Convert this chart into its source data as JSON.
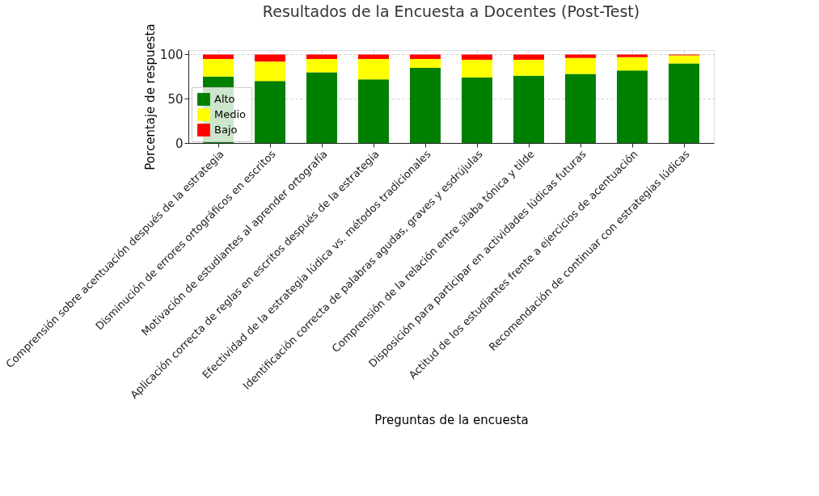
{
  "chart_data": {
    "type": "bar",
    "stacked": true,
    "title": "Resultados de la Encuesta a Docentes (Post-Test)",
    "xlabel": "Preguntas de la encuesta",
    "ylabel": "Porcentaje de respuesta",
    "categories": [
      "Comprensión sobre acentuación después de la estrategia",
      "Disminución de errores ortográficos en escritos",
      "Motivación de estudiantes al aprender ortografía",
      "Aplicación correcta de reglas en escritos después de la estrategia",
      "Efectividad de la estrategia lúdica vs. métodos tradicionales",
      "Identificación correcta de palabras agudas, graves y esdrújulas",
      "Comprensión de la relación entre sílaba tónica y tilde",
      "Disposición para participar en actividades lúdicas futuras",
      "Actitud de los estudiantes frente a ejercicios de acentuación",
      "Recomendación de continuar con estrategias lúdicas"
    ],
    "series": [
      {
        "name": "Alto",
        "color": "#008000",
        "values": [
          75,
          70,
          80,
          72,
          85,
          74,
          76,
          78,
          82,
          90
        ]
      },
      {
        "name": "Medio",
        "color": "#ffff00",
        "values": [
          20,
          22,
          15,
          23,
          10,
          20,
          18,
          18,
          15,
          9
        ]
      },
      {
        "name": "Bajo",
        "color": "#ff0000",
        "values": [
          5,
          8,
          5,
          5,
          5,
          6,
          6,
          4,
          3,
          1
        ]
      }
    ],
    "ylim": [
      0,
      105
    ],
    "yticks": [
      0,
      50,
      100
    ],
    "grid": true,
    "legend": "left"
  }
}
